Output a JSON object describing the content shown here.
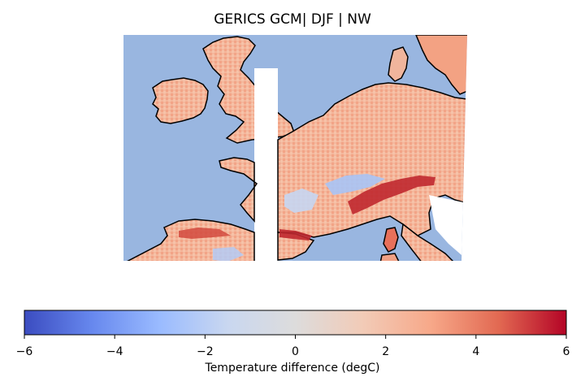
{
  "map": {
    "title": "GERICS GCM| DJF | NW",
    "ocean_color": "#99b6e0",
    "coast_color": "#000000"
  },
  "colorbar": {
    "label": "Temperature difference (degC)",
    "min": -6,
    "max": 6,
    "ticks": [
      "−6",
      "−4",
      "−2",
      "0",
      "2",
      "4",
      "6"
    ],
    "colormap": "coolwarm",
    "stops": [
      "#3b4cc0",
      "#6788ee",
      "#9abbff",
      "#c9d7f0",
      "#dddcdc",
      "#f2cbb7",
      "#f7a889",
      "#e26952",
      "#b40426"
    ]
  }
}
